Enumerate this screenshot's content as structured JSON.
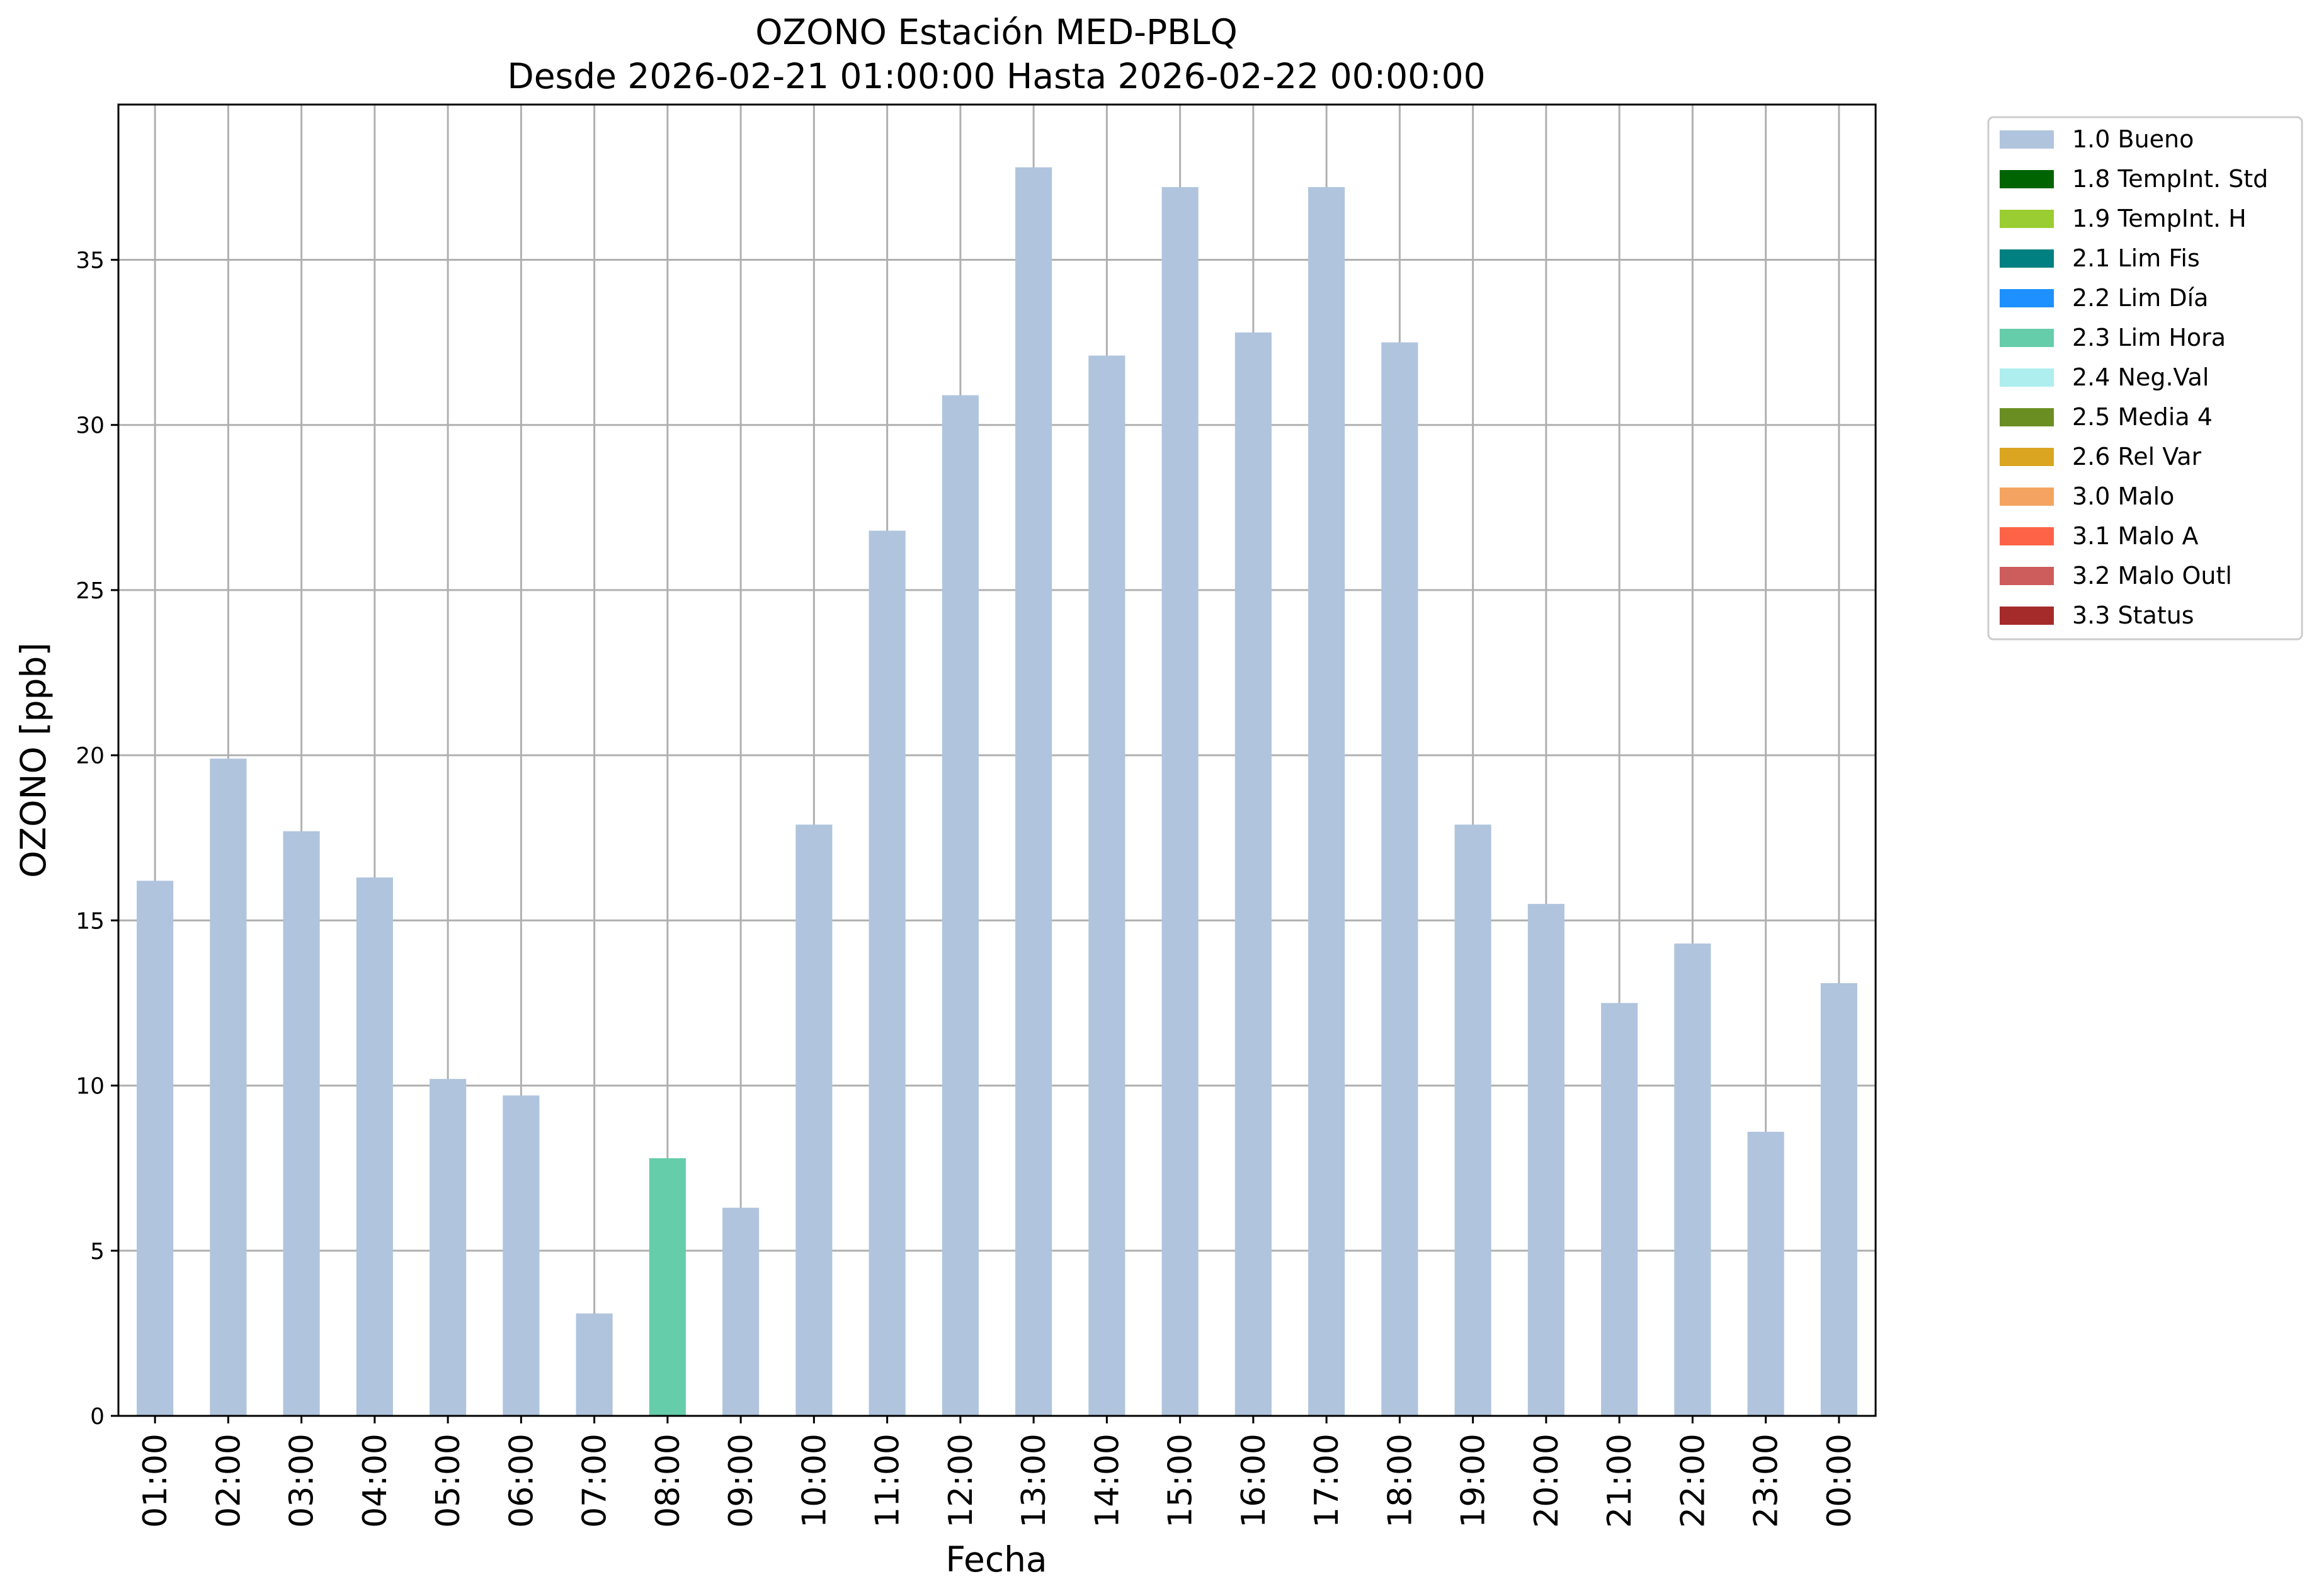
{
  "chart_data": {
    "type": "bar",
    "title": "OZONO Estación MED-PBLQ",
    "subtitle": "Desde 2026-02-21 01:00:00 Hasta 2026-02-22 00:00:00",
    "xlabel": "Fecha",
    "ylabel": "OZONO [ppb]",
    "ylim": [
      0,
      39.7
    ],
    "yticks": [
      0,
      5,
      10,
      15,
      20,
      25,
      30,
      35
    ],
    "grid": true,
    "legend_position": "outside-top-right",
    "categories": [
      "01:00",
      "02:00",
      "03:00",
      "04:00",
      "05:00",
      "06:00",
      "07:00",
      "08:00",
      "09:00",
      "10:00",
      "11:00",
      "12:00",
      "13:00",
      "14:00",
      "15:00",
      "16:00",
      "17:00",
      "18:00",
      "19:00",
      "20:00",
      "21:00",
      "22:00",
      "23:00",
      "00:00"
    ],
    "values": [
      16.2,
      19.9,
      17.7,
      16.3,
      10.2,
      9.7,
      3.1,
      7.8,
      6.3,
      17.9,
      26.8,
      30.9,
      37.8,
      32.1,
      37.2,
      32.8,
      37.2,
      32.5,
      17.9,
      15.5,
      12.5,
      14.3,
      8.6,
      13.1
    ],
    "flags": [
      "1.0 Bueno",
      "1.0 Bueno",
      "1.0 Bueno",
      "1.0 Bueno",
      "1.0 Bueno",
      "1.0 Bueno",
      "1.0 Bueno",
      "2.3 Lim Hora",
      "1.0 Bueno",
      "1.0 Bueno",
      "1.0 Bueno",
      "1.0 Bueno",
      "1.0 Bueno",
      "1.0 Bueno",
      "1.0 Bueno",
      "1.0 Bueno",
      "1.0 Bueno",
      "1.0 Bueno",
      "1.0 Bueno",
      "1.0 Bueno",
      "1.0 Bueno",
      "1.0 Bueno",
      "1.0 Bueno",
      "1.0 Bueno"
    ],
    "legend": [
      {
        "label": "1.0 Bueno",
        "color": "#b0c4de"
      },
      {
        "label": "1.8 TempInt. Std",
        "color": "#006400"
      },
      {
        "label": "1.9 TempInt. H",
        "color": "#9acd32"
      },
      {
        "label": "2.1 Lim Fis",
        "color": "#008080"
      },
      {
        "label": "2.2 Lim Día",
        "color": "#1e90ff"
      },
      {
        "label": "2.3 Lim Hora",
        "color": "#66cdaa"
      },
      {
        "label": "2.4 Neg.Val",
        "color": "#afeeee"
      },
      {
        "label": "2.5 Media 4",
        "color": "#6b8e23"
      },
      {
        "label": "2.6 Rel Var",
        "color": "#daa520"
      },
      {
        "label": "3.0 Malo",
        "color": "#f4a460"
      },
      {
        "label": "3.1 Malo A",
        "color": "#ff6347"
      },
      {
        "label": "3.2 Malo Outl",
        "color": "#cd5c5c"
      },
      {
        "label": "3.3 Status",
        "color": "#a52a2a"
      }
    ]
  }
}
